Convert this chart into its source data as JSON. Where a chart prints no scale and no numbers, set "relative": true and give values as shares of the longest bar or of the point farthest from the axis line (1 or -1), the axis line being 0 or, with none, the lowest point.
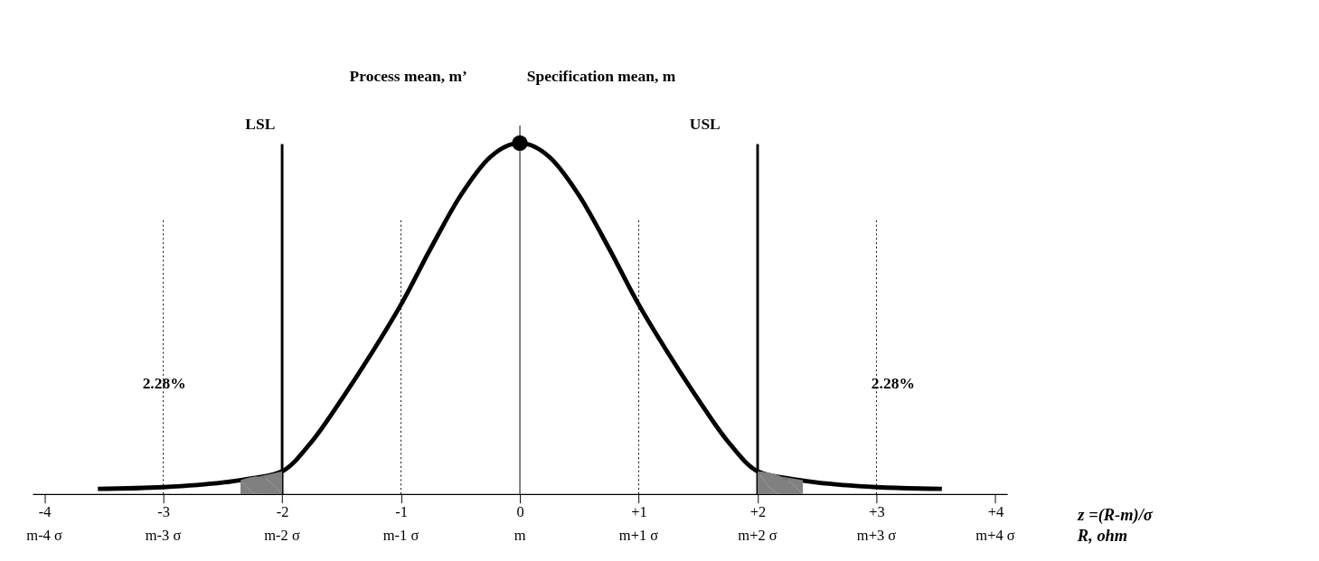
{
  "chart_data": {
    "type": "line",
    "relative": true,
    "xlabel": "z =(R-m)/σ",
    "xlim": [
      -4.1,
      4.1
    ],
    "xticks": [
      {
        "value": -4,
        "label": "-4"
      },
      {
        "value": -3,
        "label": "-3"
      },
      {
        "value": -2,
        "label": "-2"
      },
      {
        "value": -1,
        "label": "-1"
      },
      0,
      {
        "value": 1,
        "label": "+1"
      },
      {
        "value": 2,
        "label": "+2"
      },
      {
        "value": 3,
        "label": "+3"
      },
      {
        "value": 4,
        "label": "+4"
      }
    ],
    "series": [
      {
        "color": "#000000",
        "x": [
          -3.55,
          -3,
          -2.5,
          -2.25,
          -2,
          -1.75,
          -1.5,
          -1.25,
          -1,
          -0.75,
          -0.5,
          -0.25,
          0,
          0.25,
          0.5,
          0.75,
          1,
          1.25,
          1.5,
          1.75,
          2,
          2.25,
          2.5,
          3,
          3.55
        ],
        "values": [
          0.015,
          0.02,
          0.033,
          0.045,
          0.065,
          0.15,
          0.27,
          0.4,
          0.54,
          0.7,
          0.85,
          0.96,
          1,
          0.96,
          0.85,
          0.7,
          0.54,
          0.4,
          0.27,
          0.15,
          0.065,
          0.045,
          0.033,
          0.02,
          0.015
        ]
      },
      {
        "type": "area",
        "color": "#808080",
        "x": [
          -2.35,
          -2.2,
          -2
        ],
        "values": [
          0.04,
          0.05,
          0.065
        ]
      },
      {
        "type": "area",
        "color": "#808080",
        "x": [
          2,
          2.2,
          2.38
        ],
        "values": [
          0.065,
          0.05,
          0.04
        ]
      },
      {
        "type": "scatter",
        "color": "#000000",
        "marker": "circle",
        "x": [
          0
        ],
        "values": [
          1
        ]
      }
    ],
    "ref_lines": [
      {
        "axis": "x",
        "value": -2,
        "label": "LSL",
        "line_style": "solid"
      },
      {
        "axis": "x",
        "value": 2,
        "label": "USL",
        "line_style": "solid"
      },
      {
        "axis": "x",
        "value": 0,
        "label": null,
        "line_style": "solid"
      },
      {
        "axis": "x",
        "value": -3,
        "label": null,
        "line_style": "dotted"
      },
      {
        "axis": "x",
        "value": -1,
        "label": null,
        "line_style": "dotted"
      },
      {
        "axis": "x",
        "value": 1,
        "label": null,
        "line_style": "dotted"
      },
      {
        "axis": "x",
        "value": 3,
        "label": null,
        "line_style": "dotted"
      }
    ],
    "annotations": [
      "Process mean, m’",
      "Specification mean, m",
      "2.28%",
      "2.28%",
      "R, ohm",
      "m-4 σ",
      "m-3 σ",
      "m-2 σ",
      "m-1 σ",
      "m",
      "m+1 σ",
      "m+2 σ",
      "m+3 σ",
      "m+4 σ"
    ],
    "grid": false
  }
}
